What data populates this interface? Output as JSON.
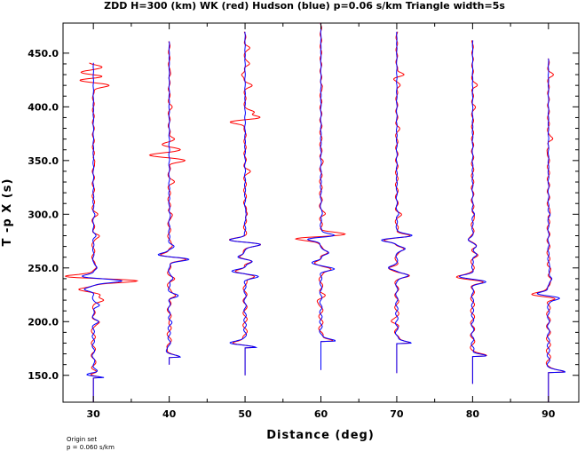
{
  "chart_data": {
    "type": "line",
    "title": "ZDD H=300 (km) WK (red) Hudson (blue) p=0.06 s/km Triangle width=5s",
    "xlabel": "Distance (deg)",
    "ylabel": "T -p X (s)",
    "xlim": [
      26,
      94
    ],
    "ylim": [
      125,
      478
    ],
    "x_ticks": [
      "30",
      "40",
      "50",
      "60",
      "70",
      "80",
      "90"
    ],
    "y_ticks": [
      "150.0",
      "200.0",
      "250.0",
      "300.0",
      "350.0",
      "400.0",
      "450.0"
    ],
    "grid": false,
    "legend": "none",
    "series": [
      {
        "color": "#ff0000",
        "label": "WK"
      },
      {
        "color": "#0000ff",
        "label": "Hudson"
      }
    ],
    "traces": [
      {
        "distance": 30,
        "t_start": 125,
        "t_first_arrival": 148,
        "t_end": 441,
        "hudson": [
          [
            148,
            4
          ],
          [
            150,
            -3
          ],
          [
            153,
            1
          ],
          [
            160,
            0.3
          ],
          [
            200,
            1
          ],
          [
            215,
            1.5
          ],
          [
            230,
            -2
          ],
          [
            238,
            7
          ],
          [
            242,
            -3
          ],
          [
            250,
            1
          ],
          [
            280,
            0.5
          ],
          [
            300,
            0.3
          ],
          [
            440,
            0
          ]
        ],
        "wk": [
          [
            242,
            -5
          ],
          [
            238,
            5
          ],
          [
            230,
            -2
          ],
          [
            225,
            2
          ],
          [
            220,
            2
          ],
          [
            215,
            -1
          ],
          [
            200,
            0.5
          ],
          [
            280,
            1
          ],
          [
            300,
            0.5
          ],
          [
            350,
            0.5
          ],
          [
            420,
            4
          ],
          [
            425,
            -4
          ],
          [
            428,
            3
          ],
          [
            432,
            -3
          ],
          [
            437,
            2
          ],
          [
            441,
            -1
          ]
        ]
      },
      {
        "distance": 40,
        "t_start": 160,
        "t_first_arrival": 167,
        "t_end": 461,
        "hudson": [
          [
            167,
            3
          ],
          [
            172,
            -1
          ],
          [
            200,
            0.5
          ],
          [
            224,
            2
          ],
          [
            240,
            1
          ],
          [
            258,
            5
          ],
          [
            262,
            -3
          ],
          [
            270,
            1
          ],
          [
            300,
            0.3
          ],
          [
            460,
            0
          ]
        ],
        "wk": [
          [
            350,
            4
          ],
          [
            355,
            -5
          ],
          [
            360,
            3
          ],
          [
            365,
            -2
          ],
          [
            370,
            1.5
          ],
          [
            330,
            1
          ],
          [
            300,
            0.5
          ],
          [
            400,
            0.5
          ],
          [
            430,
            0.4
          ]
        ]
      },
      {
        "distance": 50,
        "t_start": 150,
        "t_first_arrival": 176,
        "t_end": 470,
        "hudson": [
          [
            176,
            3
          ],
          [
            180,
            -4
          ],
          [
            242,
            3
          ],
          [
            247,
            -3
          ],
          [
            256,
            2
          ],
          [
            260,
            -2
          ],
          [
            272,
            4
          ],
          [
            276,
            -4
          ],
          [
            300,
            0.4
          ],
          [
            470,
            0
          ]
        ],
        "wk": [
          [
            390,
            4
          ],
          [
            386,
            -4
          ],
          [
            395,
            2
          ],
          [
            420,
            1.5
          ],
          [
            430,
            -1
          ],
          [
            440,
            1
          ],
          [
            455,
            1
          ],
          [
            340,
            1
          ],
          [
            300,
            0.5
          ]
        ]
      },
      {
        "distance": 60,
        "t_start": 155,
        "t_first_arrival": 182,
        "t_end": 478,
        "hudson": [
          [
            182,
            4
          ],
          [
            178,
            -4
          ],
          [
            249,
            3
          ],
          [
            255,
            -2
          ],
          [
            264,
            2
          ],
          [
            280,
            4
          ],
          [
            277,
            -4
          ],
          [
            300,
            0.4
          ],
          [
            478,
            0
          ]
        ],
        "wk": [
          [
            278,
            -4
          ],
          [
            282,
            4
          ],
          [
            225,
            1
          ],
          [
            220,
            -1
          ],
          [
            300,
            0.5
          ],
          [
            350,
            0.4
          ],
          [
            420,
            0.4
          ]
        ]
      },
      {
        "distance": 70,
        "t_start": 152,
        "t_first_arrival": 180,
        "t_end": 470,
        "hudson": [
          [
            180,
            4
          ],
          [
            176,
            -4
          ],
          [
            243,
            3
          ],
          [
            250,
            -2
          ],
          [
            268,
            2
          ],
          [
            280,
            4
          ],
          [
            276,
            -4
          ],
          [
            300,
            0.4
          ],
          [
            470,
            0
          ]
        ],
        "wk": [
          [
            430,
            2
          ],
          [
            426,
            -1
          ],
          [
            420,
            1
          ],
          [
            380,
            0.5
          ],
          [
            300,
            0.5
          ],
          [
            200,
            -1
          ]
        ]
      },
      {
        "distance": 80,
        "t_start": 142,
        "t_first_arrival": 168,
        "t_end": 462,
        "hudson": [
          [
            168,
            4
          ],
          [
            165,
            -4
          ],
          [
            237,
            3
          ],
          [
            242,
            -3
          ],
          [
            262,
            1
          ],
          [
            270,
            1
          ],
          [
            276,
            -1
          ],
          [
            300,
            0.3
          ],
          [
            460,
            0
          ]
        ],
        "wk": [
          [
            420,
            1
          ],
          [
            400,
            0.5
          ],
          [
            300,
            0.3
          ],
          [
            240,
            -2
          ]
        ]
      },
      {
        "distance": 90,
        "t_start": 125,
        "t_first_arrival": 153,
        "t_end": 445,
        "hudson": [
          [
            153,
            4
          ],
          [
            148,
            -4
          ],
          [
            222,
            3
          ],
          [
            226,
            -3
          ],
          [
            240,
            1
          ],
          [
            250,
            0.5
          ],
          [
            300,
            0.3
          ],
          [
            444,
            0
          ]
        ],
        "wk": [
          [
            224,
            -3
          ],
          [
            430,
            1
          ],
          [
            370,
            1
          ],
          [
            360,
            -0.5
          ],
          [
            300,
            0.3
          ]
        ]
      }
    ]
  },
  "footnote": {
    "line1": "Origin set",
    "line2": "p = 0.060 s/km"
  }
}
